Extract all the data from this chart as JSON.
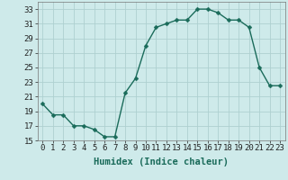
{
  "x": [
    0,
    1,
    2,
    3,
    4,
    5,
    6,
    7,
    8,
    9,
    10,
    11,
    12,
    13,
    14,
    15,
    16,
    17,
    18,
    19,
    20,
    21,
    22,
    23
  ],
  "y": [
    20.0,
    18.5,
    18.5,
    17.0,
    17.0,
    16.5,
    15.5,
    15.5,
    21.5,
    23.5,
    28.0,
    30.5,
    31.0,
    31.5,
    31.5,
    33.0,
    33.0,
    32.5,
    31.5,
    31.5,
    30.5,
    25.0,
    22.5,
    22.5
  ],
  "xlabel": "Humidex (Indice chaleur)",
  "ylim": [
    15,
    34
  ],
  "xlim": [
    -0.5,
    23.5
  ],
  "yticks": [
    15,
    17,
    19,
    21,
    23,
    25,
    27,
    29,
    31,
    33
  ],
  "xticks": [
    0,
    1,
    2,
    3,
    4,
    5,
    6,
    7,
    8,
    9,
    10,
    11,
    12,
    13,
    14,
    15,
    16,
    17,
    18,
    19,
    20,
    21,
    22,
    23
  ],
  "line_color": "#1a6b5a",
  "marker_color": "#1a6b5a",
  "bg_color": "#ceeaea",
  "grid_color": "#aed0d0",
  "xlabel_fontsize": 7.5,
  "tick_fontsize": 6.5,
  "line_width": 1.0,
  "marker_size": 2.5
}
